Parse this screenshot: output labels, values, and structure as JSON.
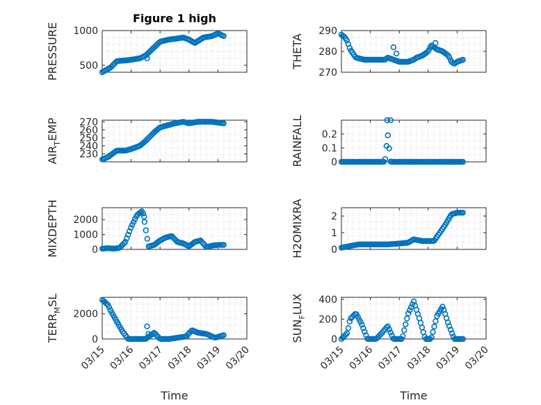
{
  "figure": {
    "title": "Figure 1 high",
    "x_axis_label": "Time"
  },
  "colors": {
    "marker": "#0072BD",
    "axis": "#262626",
    "grid": "#c8c8c8"
  },
  "chart_data": [
    {
      "type": "scatter",
      "ylabel_main": "PRESSURE",
      "ylabel_sub": "",
      "ylabel_tail": "",
      "ylim": [
        400,
        1000
      ],
      "yticks": [
        500,
        1000
      ],
      "ytick_labels": [
        "500",
        "1000"
      ],
      "x": [
        15.0,
        15.3,
        15.5,
        15.8,
        16.0,
        16.3,
        16.5,
        16.8,
        17.0,
        17.3,
        17.5,
        17.8,
        18.0,
        18.2,
        18.5,
        18.8,
        19.0,
        19.2
      ],
      "y": [
        400,
        470,
        560,
        570,
        580,
        600,
        640,
        760,
        840,
        870,
        880,
        900,
        870,
        820,
        900,
        920,
        960,
        920
      ],
      "outliers": [
        [
          16.55,
          600
        ]
      ]
    },
    {
      "type": "scatter",
      "ylabel_main": "THETA",
      "ylabel_sub": "",
      "ylabel_tail": "",
      "ylim": [
        270,
        290
      ],
      "yticks": [
        270,
        280,
        290
      ],
      "ytick_labels": [
        "270",
        "280",
        "290"
      ],
      "x": [
        15.0,
        15.1,
        15.2,
        15.3,
        15.5,
        15.8,
        16.0,
        16.3,
        16.5,
        16.6,
        16.8,
        17.0,
        17.3,
        17.5,
        17.6,
        17.8,
        18.0,
        18.1,
        18.3,
        18.5,
        18.7,
        18.8,
        18.9,
        19.0,
        19.2
      ],
      "y": [
        288,
        287,
        285,
        281,
        277,
        276,
        276,
        276,
        276,
        277,
        276,
        275,
        275,
        276,
        277,
        278,
        280,
        283,
        281,
        280,
        278,
        275,
        274,
        275,
        276
      ],
      "outliers": [
        [
          16.8,
          282
        ],
        [
          16.9,
          279
        ],
        [
          18.25,
          284
        ]
      ]
    },
    {
      "type": "scatter",
      "ylabel_main": "AIR",
      "ylabel_sub": "T",
      "ylabel_tail": "EMP",
      "ylim": [
        220,
        272
      ],
      "yticks": [
        230,
        240,
        250,
        260,
        270
      ],
      "ytick_labels": [
        "230",
        "240",
        "250",
        "260",
        "270"
      ],
      "x": [
        15.0,
        15.2,
        15.5,
        15.8,
        16.0,
        16.3,
        16.5,
        16.8,
        17.0,
        17.3,
        17.5,
        17.8,
        18.0,
        18.3,
        18.5,
        18.8,
        19.0,
        19.2
      ],
      "y": [
        223,
        226,
        234,
        234,
        236,
        240,
        246,
        257,
        263,
        266,
        268,
        270,
        268,
        270,
        270,
        270,
        269,
        268
      ],
      "outliers": []
    },
    {
      "type": "scatter",
      "ylabel_main": "RAINFALL",
      "ylabel_sub": "",
      "ylabel_tail": "",
      "ylim": [
        0,
        0.3
      ],
      "yticks": [
        0,
        0.1,
        0.2
      ],
      "ytick_labels": [
        "0",
        "0.1",
        "0.2"
      ],
      "x": [
        15.0,
        15.3,
        15.6,
        16.0,
        16.3,
        16.5,
        16.6,
        16.7,
        17.0,
        17.3,
        17.6,
        18.0,
        18.3,
        18.6,
        19.0,
        19.2
      ],
      "y": [
        0,
        0,
        0,
        0,
        0,
        0,
        0.2,
        0,
        0,
        0,
        0,
        0,
        0,
        0,
        0,
        0
      ],
      "outliers": [
        [
          16.58,
          0.3
        ],
        [
          16.7,
          0.3
        ]
      ]
    },
    {
      "type": "scatter",
      "ylabel_main": "MIXDEPTH",
      "ylabel_sub": "",
      "ylabel_tail": "",
      "ylim": [
        0,
        2800
      ],
      "yticks": [
        0,
        1000,
        2000
      ],
      "ytick_labels": [
        "0",
        "1000",
        "2000"
      ],
      "x": [
        15.0,
        15.2,
        15.4,
        15.6,
        15.8,
        16.0,
        16.2,
        16.4,
        16.6,
        16.8,
        17.0,
        17.2,
        17.4,
        17.6,
        17.8,
        18.0,
        18.2,
        18.4,
        18.6,
        18.8,
        19.0,
        19.2
      ],
      "y": [
        50,
        80,
        50,
        100,
        500,
        1500,
        2300,
        2600,
        200,
        300,
        600,
        800,
        900,
        500,
        400,
        200,
        500,
        600,
        150,
        250,
        300,
        300
      ],
      "outliers": [
        [
          16.45,
          2200
        ]
      ]
    },
    {
      "type": "scatter",
      "ylabel_main": "H2OMIXRA",
      "ylabel_sub": "",
      "ylabel_tail": "",
      "ylim": [
        0,
        2.5
      ],
      "yticks": [
        0,
        1,
        2
      ],
      "ytick_labels": [
        "0",
        "1",
        "2"
      ],
      "x": [
        15.0,
        15.3,
        15.6,
        16.0,
        16.3,
        16.6,
        17.0,
        17.3,
        17.5,
        17.8,
        18.0,
        18.2,
        18.4,
        18.6,
        18.8,
        19.0,
        19.2
      ],
      "y": [
        0.1,
        0.2,
        0.3,
        0.3,
        0.3,
        0.3,
        0.35,
        0.4,
        0.6,
        0.5,
        0.5,
        0.5,
        1.0,
        1.5,
        2.1,
        2.2,
        2.2
      ],
      "outliers": []
    },
    {
      "type": "scatter",
      "ylabel_main": "TERR",
      "ylabel_sub": "M",
      "ylabel_tail": "SL",
      "ylim": [
        0,
        3300
      ],
      "yticks": [
        0,
        2000
      ],
      "ytick_labels": [
        "0",
        "2000"
      ],
      "x": [
        15.0,
        15.2,
        15.3,
        15.5,
        15.7,
        15.9,
        16.2,
        16.5,
        16.8,
        17.0,
        17.3,
        17.6,
        17.9,
        18.1,
        18.3,
        18.6,
        18.9,
        19.2
      ],
      "y": [
        3100,
        2700,
        2200,
        1400,
        600,
        0,
        0,
        0,
        500,
        0,
        0,
        100,
        200,
        700,
        500,
        400,
        100,
        300
      ],
      "outliers": [
        [
          16.55,
          1000
        ],
        [
          16.6,
          400
        ]
      ]
    },
    {
      "type": "scatter",
      "ylabel_main": "SUN",
      "ylabel_sub": "F",
      "ylabel_tail": "LUX",
      "ylim": [
        0,
        420
      ],
      "yticks": [
        0,
        200,
        400
      ],
      "ytick_labels": [
        "0",
        "200",
        "400"
      ],
      "x": [
        15.0,
        15.2,
        15.3,
        15.5,
        15.7,
        15.9,
        16.2,
        16.4,
        16.6,
        16.8,
        17.1,
        17.3,
        17.5,
        17.7,
        17.9,
        18.1,
        18.3,
        18.5,
        18.7,
        18.9,
        19.2
      ],
      "y": [
        0,
        60,
        200,
        260,
        150,
        0,
        0,
        60,
        130,
        0,
        0,
        250,
        380,
        200,
        0,
        0,
        230,
        330,
        150,
        0,
        0
      ],
      "outliers": []
    }
  ],
  "x_axis": {
    "xlim": [
      15.0,
      20.0
    ],
    "ticks": [
      15,
      16,
      17,
      18,
      19,
      20
    ],
    "tick_labels": [
      "03/15",
      "03/16",
      "03/17",
      "03/18",
      "03/19",
      "03/20"
    ]
  }
}
